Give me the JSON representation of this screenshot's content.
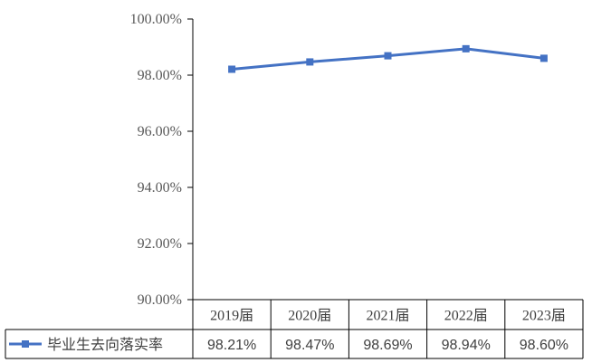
{
  "chart_data": {
    "type": "line",
    "categories": [
      "2019届",
      "2020届",
      "2021届",
      "2022届",
      "2023届"
    ],
    "series": [
      {
        "name": "毕业生去向落实率",
        "values": [
          98.21,
          98.47,
          98.69,
          98.94,
          98.6
        ],
        "value_labels": [
          "98.21%",
          "98.47%",
          "98.69%",
          "98.94%",
          "98.60%"
        ],
        "color": "#4472C4",
        "marker": "square"
      }
    ],
    "ylim": [
      90,
      100
    ],
    "yticks": [
      90,
      92,
      94,
      96,
      98,
      100
    ],
    "ytick_labels": [
      "90.00%",
      "92.00%",
      "94.00%",
      "96.00%",
      "98.00%",
      "100.00%"
    ],
    "grid": false,
    "legend": "data-table",
    "axis_color": "#000000"
  }
}
